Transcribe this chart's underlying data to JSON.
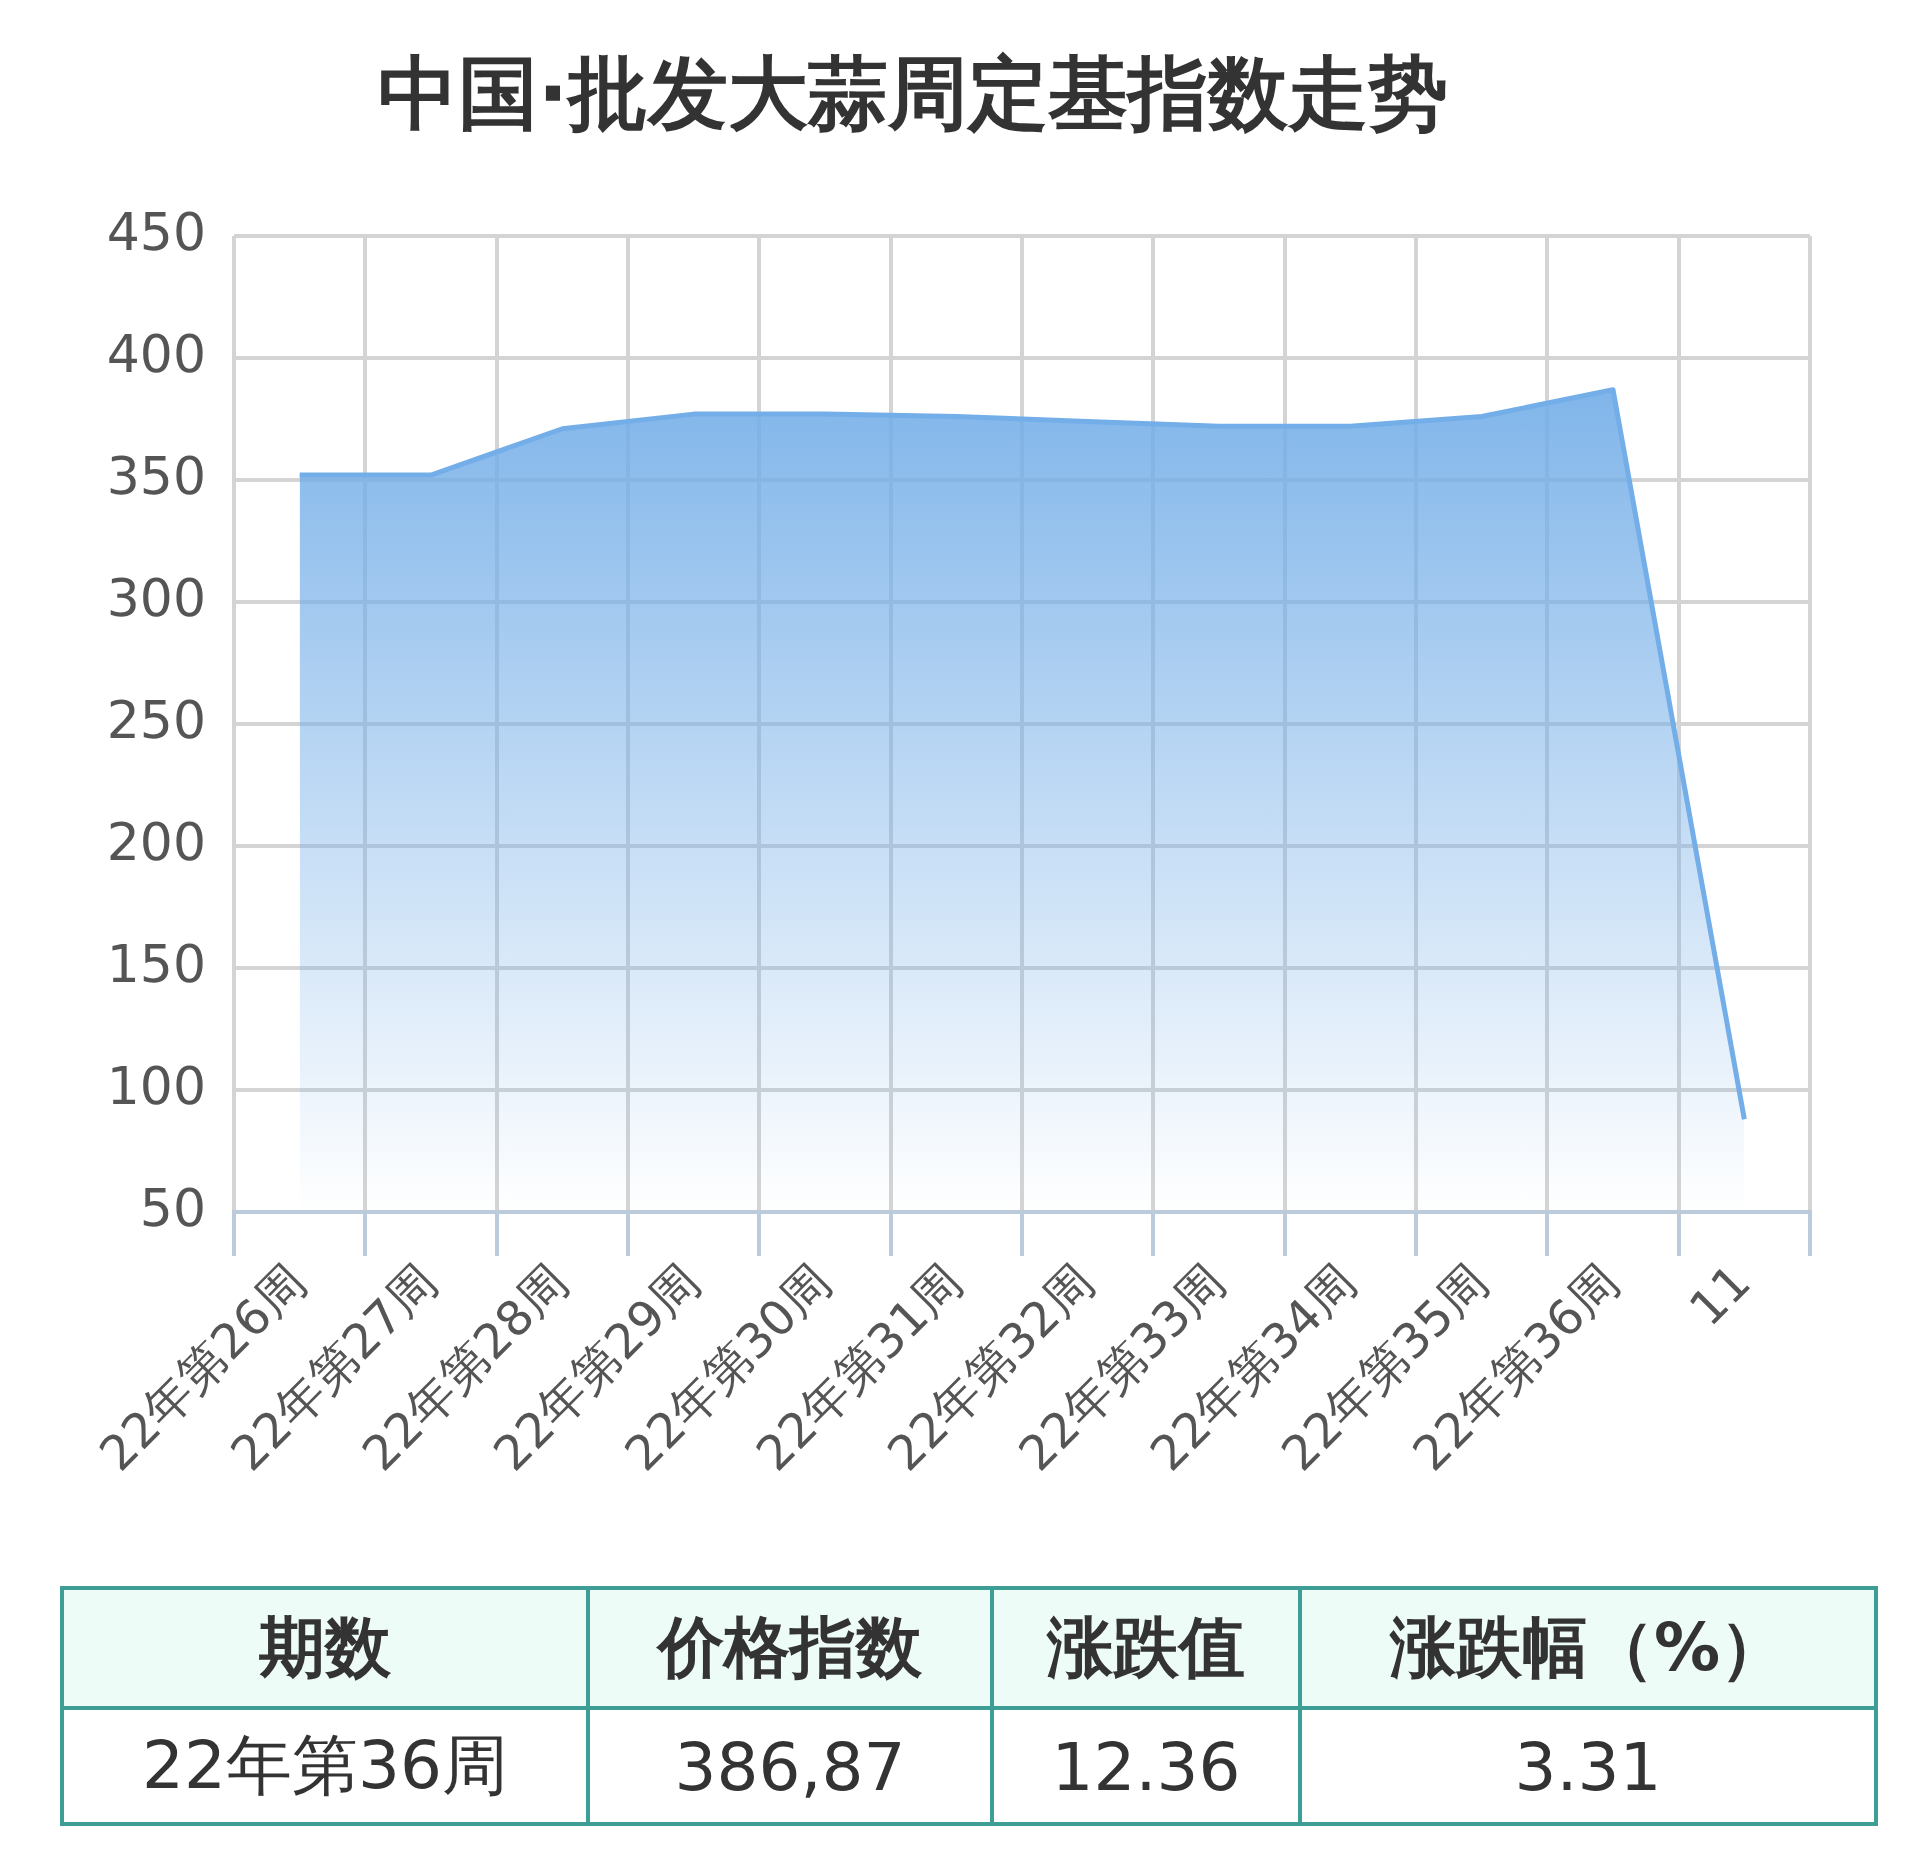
{
  "chart_data": [
    {
      "type": "area",
      "title": "中国·批发大蒜周定基指数走势",
      "categories": [
        "22年第26周",
        "22年第27周",
        "22年第28周",
        "22年第29周",
        "22年第30周",
        "22年第31周",
        "22年第32周",
        "22年第33周",
        "22年第34周",
        "22年第35周",
        "22年第36周",
        "11"
      ],
      "values": [
        352,
        352,
        371,
        377,
        377,
        376,
        374,
        372,
        372,
        376,
        387,
        88
      ],
      "color": "#74aee8",
      "ylim": [
        50,
        450
      ],
      "yticks": [
        50,
        100,
        150,
        200,
        250,
        300,
        350,
        400,
        450
      ],
      "grid": true
    },
    {
      "type": "other",
      "categories": [
        "期数",
        "价格指数",
        "涨跌值",
        "涨跌幅（%）"
      ],
      "annotations": [
        "22年第36周",
        "386,87",
        "12.36",
        "3.31"
      ]
    }
  ]
}
